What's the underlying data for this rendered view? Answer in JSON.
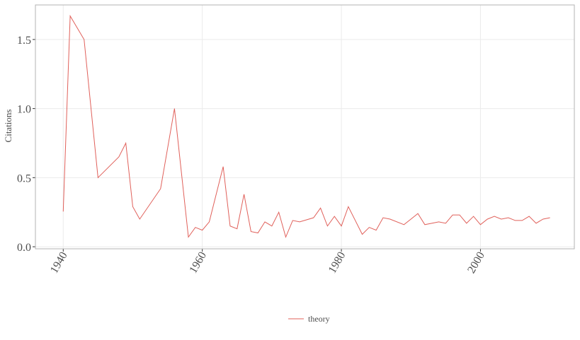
{
  "chart_data": {
    "type": "line",
    "y_label": "Citations",
    "x": [
      1940,
      1941,
      1943,
      1945,
      1948,
      1949,
      1950,
      1951,
      1954,
      1956,
      1958,
      1959,
      1960,
      1961,
      1963,
      1964,
      1965,
      1966,
      1967,
      1968,
      1969,
      1970,
      1971,
      1972,
      1973,
      1974,
      1976,
      1977,
      1978,
      1979,
      1980,
      1981,
      1982,
      1983,
      1984,
      1985,
      1986,
      1987,
      1989,
      1990,
      1991,
      1992,
      1993,
      1994,
      1995,
      1996,
      1997,
      1998,
      1999,
      2000,
      2001,
      2002,
      2003,
      2004,
      2005,
      2006,
      2007,
      2008,
      2009,
      2010
    ],
    "series": [
      {
        "name": "theory",
        "color": "#e0605a",
        "values": [
          0.255,
          1.67,
          1.5,
          0.5,
          0.65,
          0.75,
          0.29,
          0.2,
          0.42,
          1.0,
          0.07,
          0.14,
          0.12,
          0.18,
          0.58,
          0.15,
          0.13,
          0.38,
          0.11,
          0.1,
          0.18,
          0.15,
          0.25,
          0.07,
          0.19,
          0.18,
          0.21,
          0.28,
          0.15,
          0.22,
          0.15,
          0.29,
          0.19,
          0.09,
          0.14,
          0.12,
          0.21,
          0.2,
          0.16,
          0.2,
          0.24,
          0.16,
          0.17,
          0.18,
          0.17,
          0.23,
          0.23,
          0.17,
          0.22,
          0.16,
          0.2,
          0.22,
          0.2,
          0.21,
          0.19,
          0.19,
          0.22,
          0.17,
          0.2,
          0.21
        ]
      }
    ],
    "xlim": [
      1936,
      2013.5
    ],
    "ylim": [
      -0.015,
      1.75
    ],
    "xticks": [
      1940,
      1960,
      1980,
      2000
    ],
    "yticks": [
      {
        "value": 0,
        "label": "0.0"
      },
      {
        "value": 0.5,
        "label": "0.5"
      },
      {
        "value": 1,
        "label": "1.0"
      },
      {
        "value": 1.5,
        "label": "1.5"
      }
    ],
    "grid": true,
    "legend": "bottom"
  }
}
